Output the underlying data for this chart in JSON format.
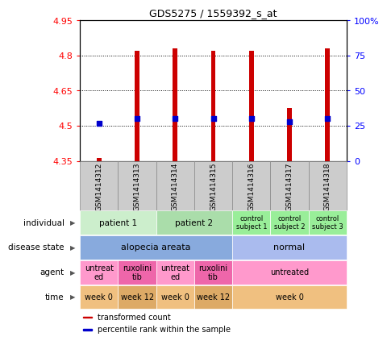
{
  "title": "GDS5275 / 1559392_s_at",
  "samples": [
    "GSM1414312",
    "GSM1414313",
    "GSM1414314",
    "GSM1414315",
    "GSM1414316",
    "GSM1414317",
    "GSM1414318"
  ],
  "transformed_count": [
    4.362,
    4.82,
    4.83,
    4.82,
    4.82,
    4.575,
    4.83
  ],
  "percentile_rank": [
    27,
    30,
    30,
    30,
    30,
    28,
    30
  ],
  "ylim_left": [
    4.35,
    4.95
  ],
  "ylim_right": [
    0,
    100
  ],
  "yticks_left": [
    4.35,
    4.5,
    4.65,
    4.8,
    4.95
  ],
  "yticks_right": [
    0,
    25,
    50,
    75,
    100
  ],
  "ytick_labels_left": [
    "4.35",
    "4.5",
    "4.65",
    "4.8",
    "4.95"
  ],
  "ytick_labels_right": [
    "0",
    "25",
    "50",
    "75",
    "100%"
  ],
  "bar_color": "#cc0000",
  "dot_color": "#0000cc",
  "bar_bottom": 4.35,
  "bar_width": 0.12,
  "dot_size": 25,
  "annotation_rows": [
    {
      "label": "individual",
      "groups": [
        {
          "text": "patient 1",
          "start": 0,
          "end": 2,
          "color": "#cceecc",
          "fontsize": 7.5
        },
        {
          "text": "patient 2",
          "start": 2,
          "end": 4,
          "color": "#aaddaa",
          "fontsize": 7.5
        },
        {
          "text": "control\nsubject 1",
          "start": 4,
          "end": 5,
          "color": "#99ee99",
          "fontsize": 6
        },
        {
          "text": "control\nsubject 2",
          "start": 5,
          "end": 6,
          "color": "#99ee99",
          "fontsize": 6
        },
        {
          "text": "control\nsubject 3",
          "start": 6,
          "end": 7,
          "color": "#99ee99",
          "fontsize": 6
        }
      ]
    },
    {
      "label": "disease state",
      "groups": [
        {
          "text": "alopecia areata",
          "start": 0,
          "end": 4,
          "color": "#88aadd",
          "fontsize": 8
        },
        {
          "text": "normal",
          "start": 4,
          "end": 7,
          "color": "#aabbee",
          "fontsize": 8
        }
      ]
    },
    {
      "label": "agent",
      "groups": [
        {
          "text": "untreat\ned",
          "start": 0,
          "end": 1,
          "color": "#ff99cc",
          "fontsize": 7
        },
        {
          "text": "ruxolini\ntib",
          "start": 1,
          "end": 2,
          "color": "#ee66aa",
          "fontsize": 7
        },
        {
          "text": "untreat\ned",
          "start": 2,
          "end": 3,
          "color": "#ff99cc",
          "fontsize": 7
        },
        {
          "text": "ruxolini\ntib",
          "start": 3,
          "end": 4,
          "color": "#ee66aa",
          "fontsize": 7
        },
        {
          "text": "untreated",
          "start": 4,
          "end": 7,
          "color": "#ff99cc",
          "fontsize": 7
        }
      ]
    },
    {
      "label": "time",
      "groups": [
        {
          "text": "week 0",
          "start": 0,
          "end": 1,
          "color": "#f0c080",
          "fontsize": 7
        },
        {
          "text": "week 12",
          "start": 1,
          "end": 2,
          "color": "#ddaa66",
          "fontsize": 7
        },
        {
          "text": "week 0",
          "start": 2,
          "end": 3,
          "color": "#f0c080",
          "fontsize": 7
        },
        {
          "text": "week 12",
          "start": 3,
          "end": 4,
          "color": "#ddaa66",
          "fontsize": 7
        },
        {
          "text": "week 0",
          "start": 4,
          "end": 7,
          "color": "#f0c080",
          "fontsize": 7
        }
      ]
    }
  ],
  "legend_items": [
    {
      "label": "transformed count",
      "color": "#cc0000"
    },
    {
      "label": "percentile rank within the sample",
      "color": "#0000cc"
    }
  ]
}
